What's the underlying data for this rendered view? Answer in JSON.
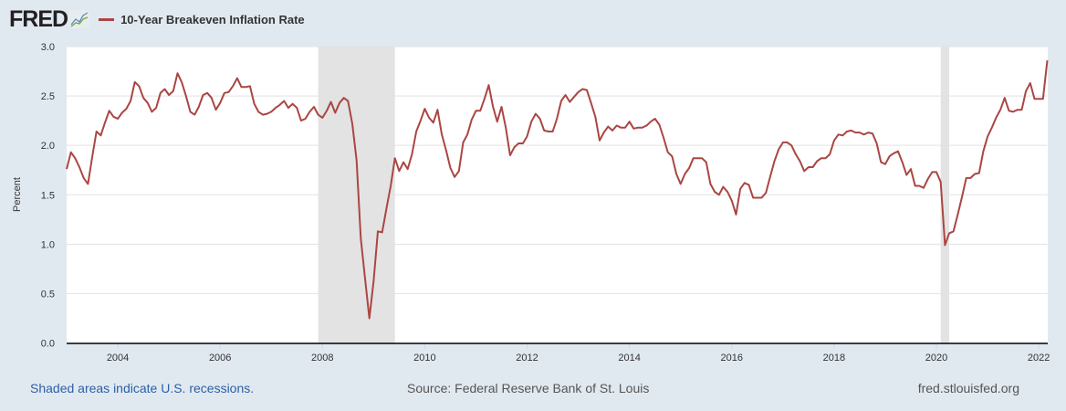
{
  "header": {
    "logo": "FRED",
    "logo_icon": "line-chart-icon"
  },
  "footer": {
    "note": "Shaded areas indicate U.S. recessions.",
    "source": "Source: Federal Reserve Bank of St. Louis",
    "url": "fred.stlouisfed.org"
  },
  "chart_data": {
    "type": "line",
    "title": "10-Year Breakeven Inflation Rate",
    "xlabel": "",
    "ylabel": "Percent",
    "ylim": [
      0,
      3.0
    ],
    "yticks": [
      "0.0",
      "0.5",
      "1.0",
      "1.5",
      "2.0",
      "2.5",
      "3.0"
    ],
    "xticks": [
      "2004",
      "2006",
      "2008",
      "2010",
      "2012",
      "2014",
      "2016",
      "2018",
      "2020",
      "2022"
    ],
    "xrange": [
      "2003-01",
      "2022-03"
    ],
    "grid": true,
    "legend": "top-left",
    "color": "#aa4643",
    "recession_color": "#e3e3e3",
    "recessions": [
      [
        "2007-12",
        "2009-06"
      ],
      [
        "2020-02",
        "2020-04"
      ]
    ],
    "series": [
      {
        "name": "10-Year Breakeven Inflation Rate",
        "start": "2003-01",
        "frequency": "monthly",
        "values": [
          1.76,
          1.93,
          1.87,
          1.78,
          1.67,
          1.61,
          1.88,
          2.14,
          2.1,
          2.23,
          2.35,
          2.29,
          2.27,
          2.33,
          2.37,
          2.45,
          2.64,
          2.6,
          2.48,
          2.43,
          2.34,
          2.38,
          2.53,
          2.57,
          2.51,
          2.55,
          2.73,
          2.64,
          2.5,
          2.34,
          2.31,
          2.39,
          2.51,
          2.53,
          2.48,
          2.36,
          2.43,
          2.53,
          2.54,
          2.6,
          2.68,
          2.59,
          2.59,
          2.6,
          2.42,
          2.34,
          2.31,
          2.32,
          2.34,
          2.38,
          2.41,
          2.45,
          2.38,
          2.42,
          2.38,
          2.25,
          2.27,
          2.34,
          2.39,
          2.31,
          2.28,
          2.35,
          2.44,
          2.33,
          2.43,
          2.48,
          2.45,
          2.22,
          1.85,
          1.06,
          0.65,
          0.25,
          0.63,
          1.13,
          1.12,
          1.36,
          1.59,
          1.87,
          1.74,
          1.83,
          1.76,
          1.91,
          2.14,
          2.25,
          2.37,
          2.28,
          2.23,
          2.36,
          2.11,
          1.95,
          1.77,
          1.68,
          1.74,
          2.03,
          2.11,
          2.26,
          2.35,
          2.35,
          2.47,
          2.61,
          2.39,
          2.24,
          2.39,
          2.18,
          1.9,
          1.98,
          2.02,
          2.02,
          2.09,
          2.24,
          2.32,
          2.27,
          2.15,
          2.14,
          2.14,
          2.27,
          2.45,
          2.51,
          2.44,
          2.49,
          2.54,
          2.57,
          2.56,
          2.43,
          2.29,
          2.05,
          2.13,
          2.19,
          2.15,
          2.2,
          2.18,
          2.18,
          2.24,
          2.17,
          2.18,
          2.18,
          2.2,
          2.24,
          2.27,
          2.21,
          2.08,
          1.93,
          1.89,
          1.71,
          1.61,
          1.71,
          1.77,
          1.87,
          1.87,
          1.87,
          1.83,
          1.61,
          1.53,
          1.5,
          1.58,
          1.53,
          1.44,
          1.3,
          1.56,
          1.62,
          1.6,
          1.47,
          1.47,
          1.47,
          1.52,
          1.68,
          1.84,
          1.96,
          2.03,
          2.03,
          2.0,
          1.91,
          1.84,
          1.74,
          1.78,
          1.78,
          1.84,
          1.87,
          1.87,
          1.91,
          2.05,
          2.11,
          2.1,
          2.14,
          2.15,
          2.13,
          2.13,
          2.11,
          2.13,
          2.12,
          2.02,
          1.83,
          1.81,
          1.89,
          1.92,
          1.94,
          1.83,
          1.7,
          1.76,
          1.59,
          1.59,
          1.57,
          1.66,
          1.73,
          1.73,
          1.63,
          0.99,
          1.11,
          1.13,
          1.3,
          1.48,
          1.67,
          1.67,
          1.71,
          1.72,
          1.94,
          2.09,
          2.18,
          2.28,
          2.36,
          2.48,
          2.35,
          2.34,
          2.36,
          2.36,
          2.55,
          2.63,
          2.47,
          2.47,
          2.47,
          2.86
        ]
      }
    ]
  }
}
